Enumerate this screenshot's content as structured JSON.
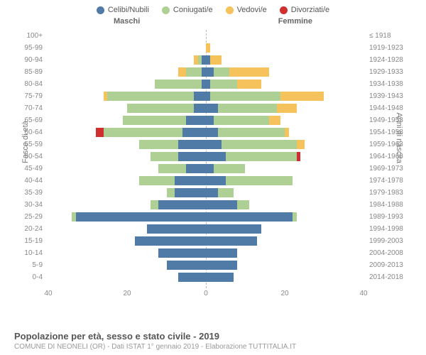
{
  "legend": [
    {
      "label": "Celibi/Nubili",
      "color": "#4f7ba6"
    },
    {
      "label": "Coniugati/e",
      "color": "#afd095"
    },
    {
      "label": "Vedovi/e",
      "color": "#f6c25b"
    },
    {
      "label": "Divorziati/e",
      "color": "#d02f2f"
    }
  ],
  "headers": {
    "male": "Maschi",
    "female": "Femmine"
  },
  "axis_labels": {
    "left": "Fasce di età",
    "right": "Anni di nascita"
  },
  "x_ticks": [
    40,
    20,
    0,
    20,
    40
  ],
  "x_max": 40,
  "title": "Popolazione per età, sesso e stato civile - 2019",
  "subtitle": "COMUNE DI NEONELI (OR) - Dati ISTAT 1° gennaio 2019 - Elaborazione TUTTITALIA.IT",
  "chart_bg": "#ffffff",
  "rows": [
    {
      "age": "100+",
      "birth": "≤ 1918",
      "m": [
        0,
        0,
        0,
        0
      ],
      "f": [
        0,
        0,
        0,
        0
      ]
    },
    {
      "age": "95-99",
      "birth": "1919-1923",
      "m": [
        0,
        0,
        0,
        0
      ],
      "f": [
        0,
        0,
        1,
        0
      ]
    },
    {
      "age": "90-94",
      "birth": "1924-1928",
      "m": [
        1,
        1,
        1,
        0
      ],
      "f": [
        1,
        0,
        3,
        0
      ]
    },
    {
      "age": "85-89",
      "birth": "1929-1933",
      "m": [
        1,
        4,
        2,
        0
      ],
      "f": [
        2,
        4,
        10,
        0
      ]
    },
    {
      "age": "80-84",
      "birth": "1934-1938",
      "m": [
        1,
        12,
        0,
        0
      ],
      "f": [
        1,
        7,
        6,
        0
      ]
    },
    {
      "age": "75-79",
      "birth": "1939-1943",
      "m": [
        3,
        22,
        1,
        0
      ],
      "f": [
        1,
        18,
        11,
        0
      ]
    },
    {
      "age": "70-74",
      "birth": "1944-1948",
      "m": [
        3,
        17,
        0,
        0
      ],
      "f": [
        3,
        15,
        5,
        0
      ]
    },
    {
      "age": "65-69",
      "birth": "1949-1953",
      "m": [
        5,
        16,
        0,
        0
      ],
      "f": [
        2,
        14,
        3,
        0
      ]
    },
    {
      "age": "60-64",
      "birth": "1954-1958",
      "m": [
        6,
        20,
        0,
        2
      ],
      "f": [
        3,
        17,
        1,
        0
      ]
    },
    {
      "age": "55-59",
      "birth": "1959-1963",
      "m": [
        7,
        10,
        0,
        0
      ],
      "f": [
        4,
        19,
        2,
        0
      ]
    },
    {
      "age": "50-54",
      "birth": "1964-1968",
      "m": [
        7,
        7,
        0,
        0
      ],
      "f": [
        5,
        18,
        0,
        1
      ]
    },
    {
      "age": "45-49",
      "birth": "1969-1973",
      "m": [
        5,
        7,
        0,
        0
      ],
      "f": [
        2,
        8,
        0,
        0
      ]
    },
    {
      "age": "40-44",
      "birth": "1974-1978",
      "m": [
        8,
        9,
        0,
        0
      ],
      "f": [
        5,
        17,
        0,
        0
      ]
    },
    {
      "age": "35-39",
      "birth": "1979-1983",
      "m": [
        8,
        2,
        0,
        0
      ],
      "f": [
        3,
        4,
        0,
        0
      ]
    },
    {
      "age": "30-34",
      "birth": "1984-1988",
      "m": [
        12,
        2,
        0,
        0
      ],
      "f": [
        8,
        3,
        0,
        0
      ]
    },
    {
      "age": "25-29",
      "birth": "1989-1993",
      "m": [
        33,
        1,
        0,
        0
      ],
      "f": [
        22,
        1,
        0,
        0
      ]
    },
    {
      "age": "20-24",
      "birth": "1994-1998",
      "m": [
        15,
        0,
        0,
        0
      ],
      "f": [
        14,
        0,
        0,
        0
      ]
    },
    {
      "age": "15-19",
      "birth": "1999-2003",
      "m": [
        18,
        0,
        0,
        0
      ],
      "f": [
        13,
        0,
        0,
        0
      ]
    },
    {
      "age": "10-14",
      "birth": "2004-2008",
      "m": [
        12,
        0,
        0,
        0
      ],
      "f": [
        8,
        0,
        0,
        0
      ]
    },
    {
      "age": "5-9",
      "birth": "2009-2013",
      "m": [
        10,
        0,
        0,
        0
      ],
      "f": [
        8,
        0,
        0,
        0
      ]
    },
    {
      "age": "0-4",
      "birth": "2014-2018",
      "m": [
        7,
        0,
        0,
        0
      ],
      "f": [
        7,
        0,
        0,
        0
      ]
    }
  ]
}
